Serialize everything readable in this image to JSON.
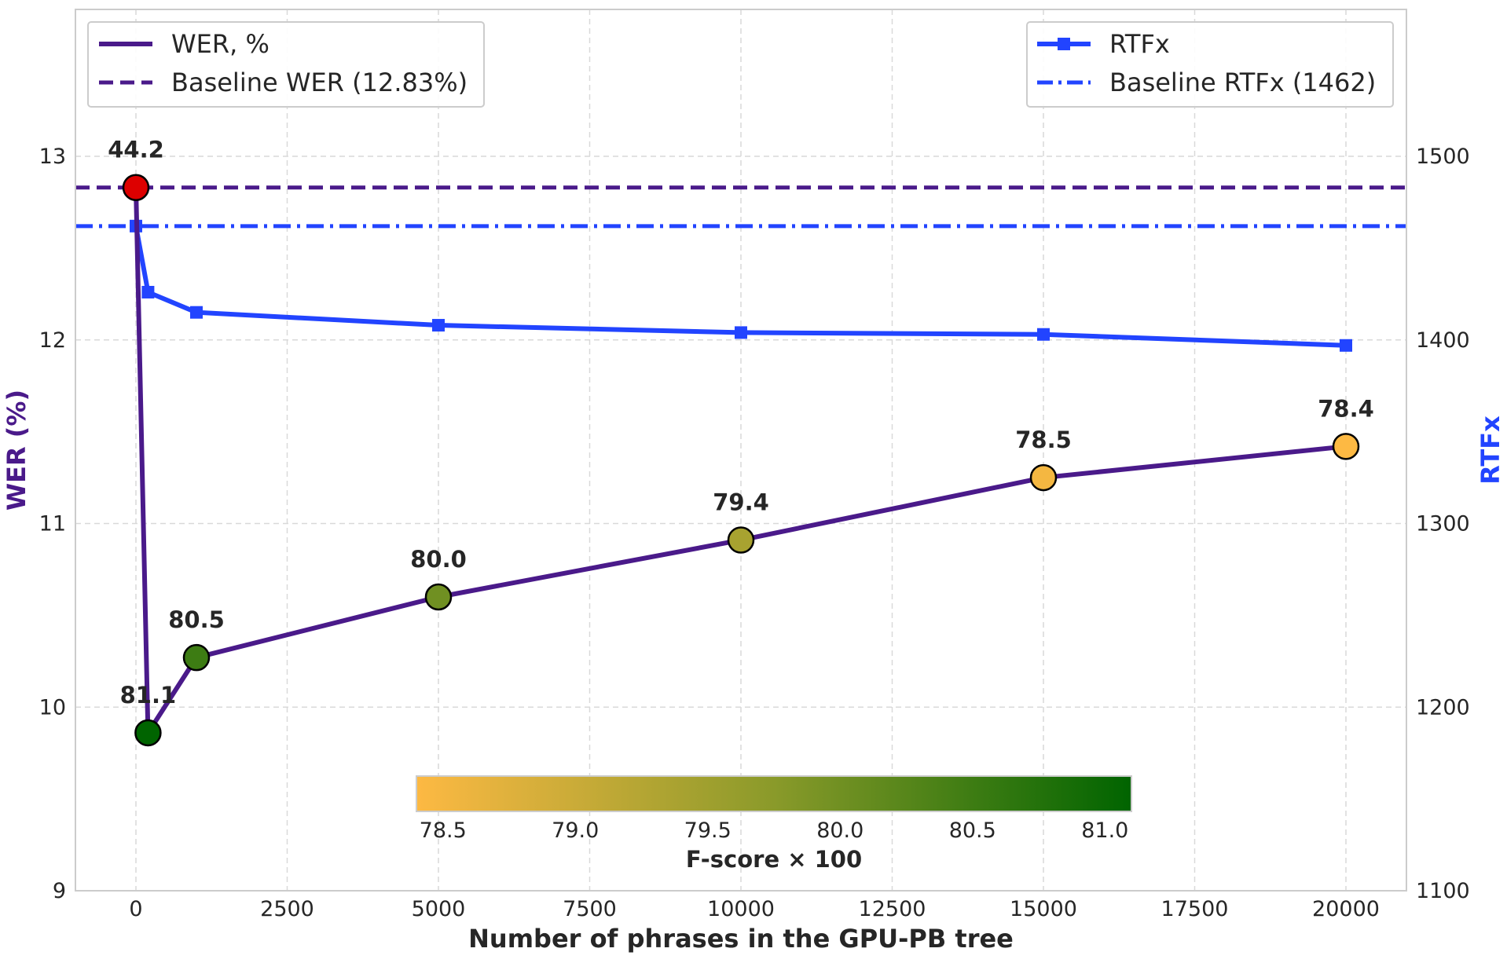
{
  "chart_data": {
    "type": "line",
    "xlabel": "Number of phrases in the GPU-PB tree",
    "ylabel_left": "WER (%)",
    "ylabel_right": "RTFx",
    "x": [
      0,
      200,
      1000,
      5000,
      10000,
      15000,
      20000
    ],
    "x_ticks": [
      "0",
      "2500",
      "5000",
      "7500",
      "10000",
      "12500",
      "15000",
      "17500",
      "20000"
    ],
    "xlim": [
      -1000,
      21000
    ],
    "ylim_left": [
      9,
      13.8
    ],
    "ylim_right": [
      1100,
      1580
    ],
    "y_ticks_left": [
      "9",
      "10",
      "11",
      "12",
      "13"
    ],
    "y_ticks_right": [
      "1100",
      "1200",
      "1300",
      "1400",
      "1500"
    ],
    "grid": true,
    "series": [
      {
        "name": "WER, %",
        "axis": "left",
        "values": [
          12.83,
          9.86,
          10.27,
          10.6,
          10.91,
          11.25,
          11.42
        ],
        "fscore": [
          44.2,
          81.1,
          80.5,
          80.0,
          79.4,
          78.5,
          78.4
        ],
        "point_labels": [
          "44.2",
          "81.1",
          "80.5",
          "80.0",
          "79.4",
          "78.5",
          "78.4"
        ],
        "color": "#4a1a8a"
      },
      {
        "name": "RTFx",
        "axis": "right",
        "values": [
          1462,
          1426,
          1415,
          1408,
          1404,
          1403,
          1397
        ],
        "color": "#2244ff"
      }
    ],
    "baselines": [
      {
        "name": "Baseline WER (12.83%)",
        "axis": "left",
        "value": 12.83,
        "color": "#4a1a8a",
        "style": "dashed"
      },
      {
        "name": "Baseline RTFx (1462)",
        "axis": "right",
        "value": 1462,
        "color": "#2244ff",
        "style": "dashdot"
      }
    ],
    "legend_left": {
      "placement": "top-left",
      "entries": [
        "WER, %",
        "Baseline WER (12.83%)"
      ]
    },
    "legend_right": {
      "placement": "top-right",
      "entries": [
        "RTFx",
        "Baseline RTFx (1462)"
      ]
    },
    "colorbar": {
      "title": "F-score × 100",
      "range": [
        78.4,
        81.1
      ],
      "ticks": [
        "78.5",
        "79.0",
        "79.5",
        "80.0",
        "80.5",
        "81.0"
      ],
      "color_low": "#fdb943",
      "color_high": "#006400",
      "placement": "bottom-center"
    },
    "outlier_color": "#dd0000"
  }
}
